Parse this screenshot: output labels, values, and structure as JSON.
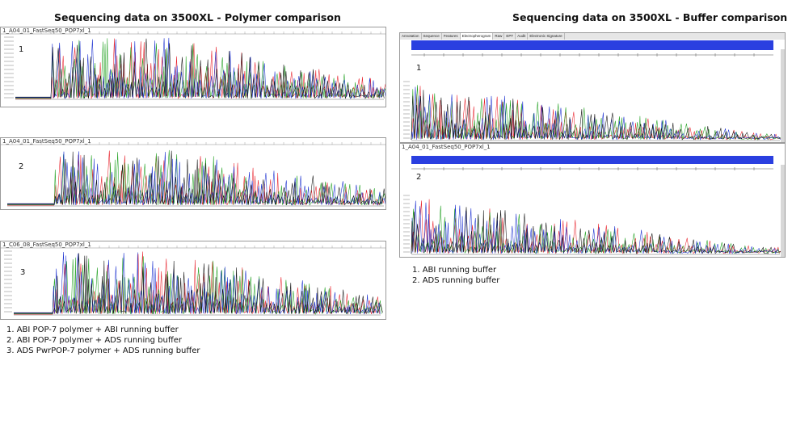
{
  "titles": {
    "left": "Sequencing data on 3500XL - Polymer comparison",
    "right": "Sequencing data on 3500XL - Buffer comparison"
  },
  "left_panels": [
    {
      "file": "1_A04_01_FastSeq50_POP7xl_1",
      "number": "1"
    },
    {
      "file": "1_A04_01_FastSeq50_POP7xl_1",
      "number": "2"
    },
    {
      "file": "1_C06_08_FastSeq50_POP7xl_1",
      "number": "3"
    }
  ],
  "right_panels": [
    {
      "number": "1"
    },
    {
      "file": "1_A04_01_FastSeq50_POP7xl_1",
      "number": "2"
    }
  ],
  "right_tabs": [
    "Annotation",
    "Sequence",
    "Features",
    "Electropherogram",
    "Raw",
    "EPT",
    "Audit",
    "Electronic Signature"
  ],
  "left_legend": [
    "1. ABI POP-7 polymer + ABI running buffer",
    "2. ABI POP-7 polymer + ADS running buffer",
    "3. ADS PwrPOP-7 polymer + ADS running buffer"
  ],
  "right_legend": [
    "1. ABI running buffer",
    "2. ADS running buffer"
  ],
  "trace_colors": {
    "red": "#e8202a",
    "green": "#1fa01f",
    "blue": "#1a2fd0",
    "black": "#111111"
  },
  "quality_bar_color": "#2a3fe0"
}
